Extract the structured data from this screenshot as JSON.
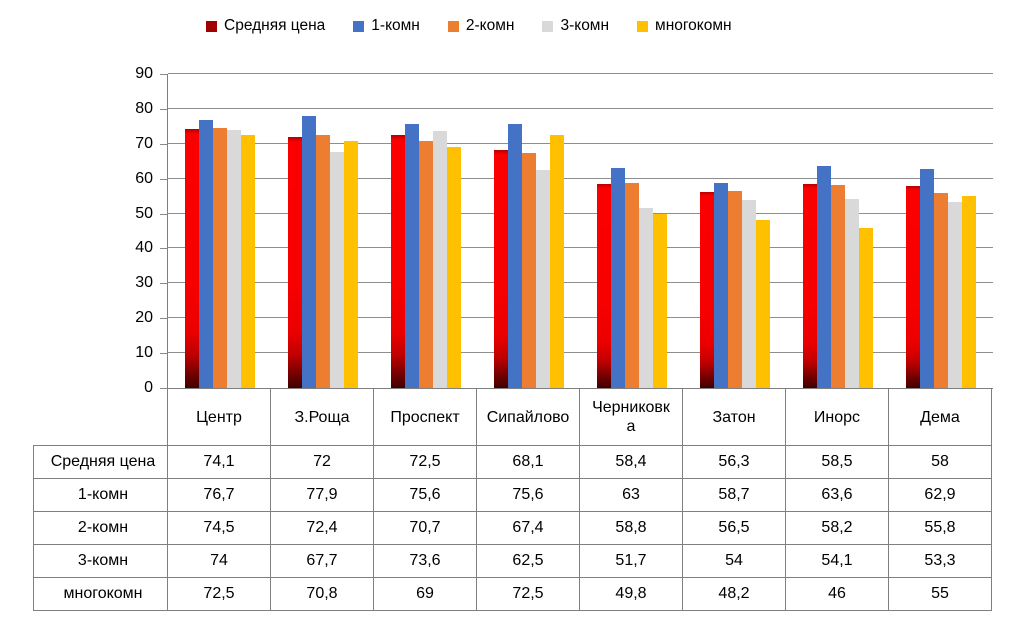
{
  "legend": {
    "position": "top",
    "items": [
      {
        "label": "Средняя цена",
        "color": "#a00000"
      },
      {
        "label": "1-комн",
        "color": "#4472c4"
      },
      {
        "label": "2-комн",
        "color": "#ed7d31"
      },
      {
        "label": "3-комн",
        "color": "#d9d9d9"
      },
      {
        "label": "многокомн",
        "color": "#ffc000"
      }
    ]
  },
  "chart_data": {
    "type": "bar",
    "title": "",
    "xlabel": "",
    "ylabel": "",
    "ylim": [
      0,
      90
    ],
    "ytick_step": 10,
    "ytick_labels": [
      "90",
      "80",
      "70",
      "60",
      "50",
      "40",
      "30",
      "20",
      "10",
      "0"
    ],
    "grid": true,
    "legend_position": "top",
    "data_table_shown": true,
    "categories": [
      "Центр",
      "З.Роща",
      "Проспект",
      "Сипайлово",
      "Черниковка",
      "Затон",
      "Инорс",
      "Дема"
    ],
    "series": [
      {
        "name": "Средняя цена",
        "color": "#e80000",
        "gradient": true,
        "values": [
          74.1,
          72,
          72.5,
          68.1,
          58.4,
          56.3,
          58.5,
          58
        ],
        "labels": [
          "74,1",
          "72",
          "72,5",
          "68,1",
          "58,4",
          "56,3",
          "58,5",
          "58"
        ]
      },
      {
        "name": "1-комн",
        "color": "#4472c4",
        "gradient": false,
        "values": [
          76.7,
          77.9,
          75.6,
          75.6,
          63,
          58.7,
          63.6,
          62.9
        ],
        "labels": [
          "76,7",
          "77,9",
          "75,6",
          "75,6",
          "63",
          "58,7",
          "63,6",
          "62,9"
        ]
      },
      {
        "name": "2-комн",
        "color": "#ed7d31",
        "gradient": false,
        "values": [
          74.5,
          72.4,
          70.7,
          67.4,
          58.8,
          56.5,
          58.2,
          55.8
        ],
        "labels": [
          "74,5",
          "72,4",
          "70,7",
          "67,4",
          "58,8",
          "56,5",
          "58,2",
          "55,8"
        ]
      },
      {
        "name": "3-комн",
        "color": "#d9d9d9",
        "gradient": false,
        "values": [
          74,
          67.7,
          73.6,
          62.5,
          51.7,
          54,
          54.1,
          53.3
        ],
        "labels": [
          "74",
          "67,7",
          "73,6",
          "62,5",
          "51,7",
          "54",
          "54,1",
          "53,3"
        ]
      },
      {
        "name": "многокомн",
        "color": "#ffc000",
        "gradient": false,
        "values": [
          72.5,
          70.8,
          69,
          72.5,
          49.8,
          48.2,
          46,
          55
        ],
        "labels": [
          "72,5",
          "70,8",
          "69",
          "72,5",
          "49,8",
          "48,2",
          "46",
          "55"
        ]
      }
    ]
  }
}
